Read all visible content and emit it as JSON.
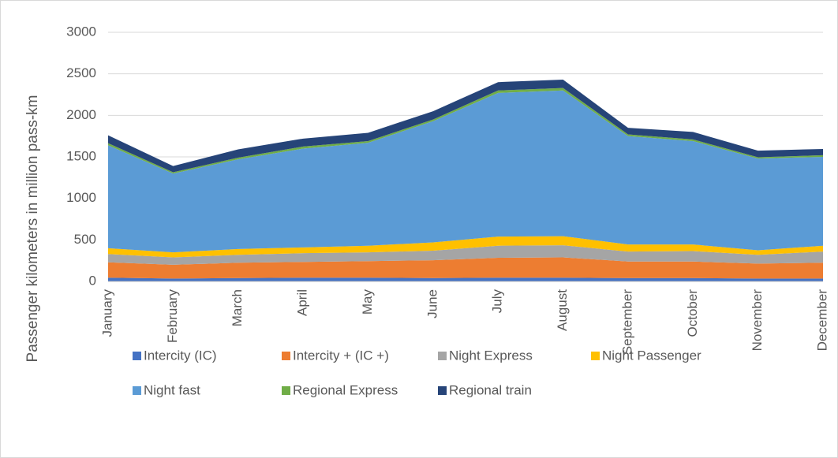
{
  "chart_data": {
    "type": "stacked_area",
    "y_label": "Passenger kilometers in million pass-km",
    "categories": [
      "January",
      "February",
      "March",
      "April",
      "May",
      "June",
      "July",
      "August",
      "September",
      "October",
      "November",
      "December"
    ],
    "series": [
      {
        "name": "Intercity (IC)",
        "color": "#4472c4",
        "values": [
          45,
          35,
          40,
          45,
          45,
          40,
          45,
          45,
          40,
          40,
          35,
          35
        ]
      },
      {
        "name": "Intercity + (IC +)",
        "color": "#ed7d31",
        "values": [
          185,
          165,
          185,
          190,
          200,
          215,
          240,
          245,
          200,
          200,
          180,
          190
        ]
      },
      {
        "name": "Night Express",
        "color": "#a5a5a5",
        "values": [
          100,
          90,
          95,
          105,
          105,
          115,
          145,
          145,
          120,
          125,
          105,
          135
        ]
      },
      {
        "name": "Night Passenger",
        "color": "#ffc000",
        "values": [
          70,
          60,
          70,
          70,
          80,
          100,
          110,
          110,
          85,
          80,
          55,
          70
        ]
      },
      {
        "name": "Night fast",
        "color": "#5b9bd5",
        "values": [
          1240,
          950,
          1080,
          1190,
          1240,
          1460,
          1730,
          1755,
          1305,
          1245,
          1105,
          1070
        ]
      },
      {
        "name": "Regional Express",
        "color": "#70ad47",
        "values": [
          25,
          15,
          20,
          25,
          20,
          20,
          30,
          30,
          20,
          20,
          15,
          20
        ]
      },
      {
        "name": "Regional train",
        "color": "#264478",
        "values": [
          95,
          75,
          100,
          95,
          100,
          100,
          100,
          100,
          80,
          90,
          80,
          75
        ]
      }
    ],
    "ylim": [
      0,
      3000
    ],
    "yticks": [
      0,
      500,
      1000,
      1500,
      2000,
      2500,
      3000
    ],
    "grid": true,
    "legend": "bottom"
  }
}
